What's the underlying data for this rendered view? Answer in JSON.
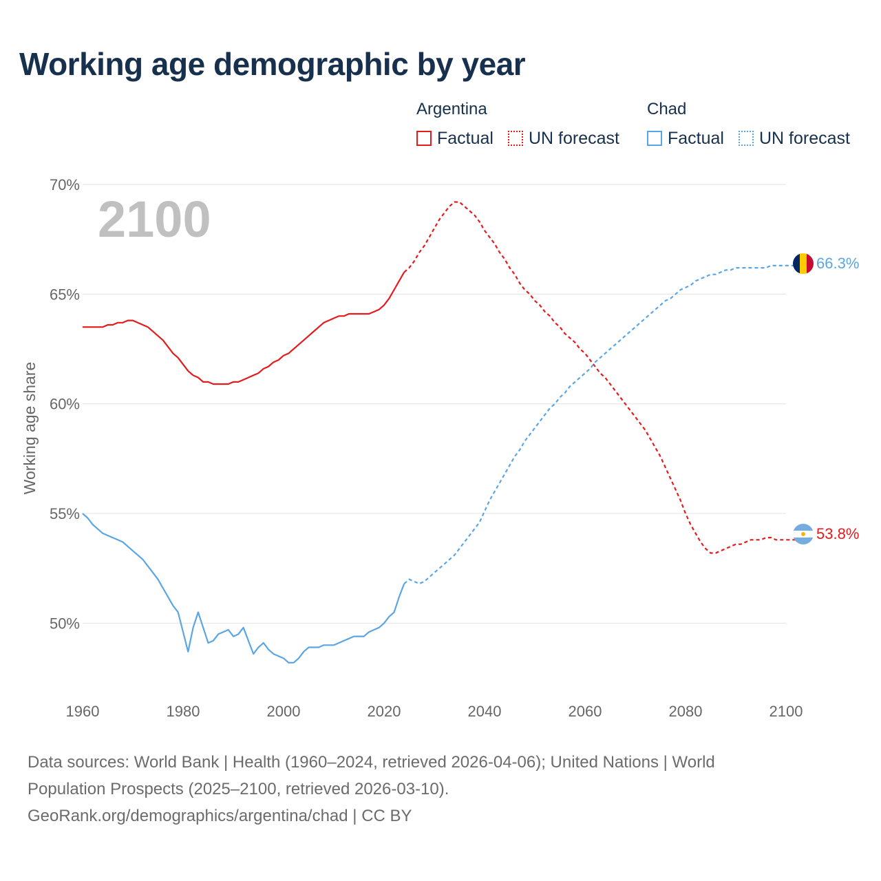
{
  "title": "Working age demographic by year",
  "legend": {
    "argentina_label": "Argentina",
    "chad_label": "Chad",
    "factual_label": "Factual",
    "forecast_label": "UN forecast"
  },
  "colors": {
    "argentina": "#e41a1c",
    "chad": "#5aa5e6",
    "grid": "#e6e6e6",
    "axis_text": "#666666",
    "year_watermark": "#c0c0c0"
  },
  "footer": {
    "line1": "Data sources: World Bank | Health (1960–2024, retrieved 2026-04-06); United Nations | World",
    "line2": "Population Prospects (2025–2100, retrieved 2026-03-10).",
    "line3": "GeoRank.org/demographics/argentina/chad | CC BY"
  },
  "chart_data": {
    "type": "line",
    "title": "Working age demographic by year",
    "xlabel": "",
    "ylabel": "Working age share",
    "xlim": [
      1960,
      2100
    ],
    "ylim": [
      46.5,
      70
    ],
    "x_ticks": [
      1960,
      1980,
      2000,
      2020,
      2040,
      2060,
      2080,
      2100
    ],
    "y_ticks": [
      50,
      55,
      60,
      65,
      70
    ],
    "y_tick_labels": [
      "50%",
      "55%",
      "60%",
      "65%",
      "70%"
    ],
    "grid": true,
    "year_watermark": "2100",
    "factual_until": 2024,
    "series": [
      {
        "name": "Argentina",
        "end_label": "53.8%",
        "flag": "argentina-flag",
        "points": [
          [
            1960,
            63.5
          ],
          [
            1964,
            63.5
          ],
          [
            1965,
            63.6
          ],
          [
            1966,
            63.6
          ],
          [
            1967,
            63.7
          ],
          [
            1968,
            63.7
          ],
          [
            1969,
            63.8
          ],
          [
            1970,
            63.8
          ],
          [
            1972,
            63.6
          ],
          [
            1973,
            63.5
          ],
          [
            1975,
            63.1
          ],
          [
            1976,
            62.9
          ],
          [
            1978,
            62.3
          ],
          [
            1979,
            62.1
          ],
          [
            1981,
            61.5
          ],
          [
            1982,
            61.3
          ],
          [
            1983,
            61.2
          ],
          [
            1984,
            61.0
          ],
          [
            1985,
            61.0
          ],
          [
            1986,
            60.9
          ],
          [
            1987,
            60.9
          ],
          [
            1989,
            60.9
          ],
          [
            1990,
            61.0
          ],
          [
            1991,
            61.0
          ],
          [
            1992,
            61.1
          ],
          [
            1994,
            61.3
          ],
          [
            1995,
            61.4
          ],
          [
            1996,
            61.6
          ],
          [
            1997,
            61.7
          ],
          [
            1998,
            61.9
          ],
          [
            1999,
            62.0
          ],
          [
            2000,
            62.2
          ],
          [
            2001,
            62.3
          ],
          [
            2002,
            62.5
          ],
          [
            2003,
            62.7
          ],
          [
            2004,
            62.9
          ],
          [
            2005,
            63.1
          ],
          [
            2006,
            63.3
          ],
          [
            2007,
            63.5
          ],
          [
            2008,
            63.7
          ],
          [
            2009,
            63.8
          ],
          [
            2010,
            63.9
          ],
          [
            2011,
            64.0
          ],
          [
            2012,
            64.0
          ],
          [
            2013,
            64.1
          ],
          [
            2014,
            64.1
          ],
          [
            2017,
            64.1
          ],
          [
            2018,
            64.2
          ],
          [
            2019,
            64.3
          ],
          [
            2020,
            64.5
          ],
          [
            2021,
            64.8
          ],
          [
            2022,
            65.2
          ],
          [
            2023,
            65.6
          ],
          [
            2024,
            66.0
          ],
          [
            2025,
            66.2
          ],
          [
            2026,
            66.5
          ],
          [
            2027,
            66.9
          ],
          [
            2028,
            67.2
          ],
          [
            2029,
            67.6
          ],
          [
            2030,
            68.0
          ],
          [
            2031,
            68.4
          ],
          [
            2032,
            68.7
          ],
          [
            2033,
            69.0
          ],
          [
            2034,
            69.2
          ],
          [
            2035,
            69.2
          ],
          [
            2036,
            69.0
          ],
          [
            2037,
            68.8
          ],
          [
            2038,
            68.6
          ],
          [
            2039,
            68.3
          ],
          [
            2040,
            67.9
          ],
          [
            2041,
            67.6
          ],
          [
            2042,
            67.3
          ],
          [
            2043,
            66.9
          ],
          [
            2044,
            66.6
          ],
          [
            2045,
            66.2
          ],
          [
            2046,
            65.9
          ],
          [
            2047,
            65.5
          ],
          [
            2048,
            65.2
          ],
          [
            2049,
            65.0
          ],
          [
            2050,
            64.7
          ],
          [
            2051,
            64.5
          ],
          [
            2052,
            64.2
          ],
          [
            2053,
            64.0
          ],
          [
            2054,
            63.7
          ],
          [
            2055,
            63.5
          ],
          [
            2056,
            63.2
          ],
          [
            2057,
            63.0
          ],
          [
            2058,
            62.8
          ],
          [
            2059,
            62.5
          ],
          [
            2060,
            62.3
          ],
          [
            2061,
            62.0
          ],
          [
            2062,
            61.7
          ],
          [
            2063,
            61.4
          ],
          [
            2064,
            61.2
          ],
          [
            2065,
            60.9
          ],
          [
            2066,
            60.6
          ],
          [
            2067,
            60.3
          ],
          [
            2068,
            60.0
          ],
          [
            2069,
            59.7
          ],
          [
            2070,
            59.4
          ],
          [
            2071,
            59.1
          ],
          [
            2072,
            58.8
          ],
          [
            2073,
            58.4
          ],
          [
            2074,
            58.0
          ],
          [
            2075,
            57.6
          ],
          [
            2076,
            57.1
          ],
          [
            2077,
            56.6
          ],
          [
            2078,
            56.1
          ],
          [
            2079,
            55.6
          ],
          [
            2080,
            55.0
          ],
          [
            2081,
            54.5
          ],
          [
            2082,
            54.1
          ],
          [
            2083,
            53.7
          ],
          [
            2084,
            53.4
          ],
          [
            2085,
            53.2
          ],
          [
            2086,
            53.2
          ],
          [
            2087,
            53.3
          ],
          [
            2088,
            53.4
          ],
          [
            2089,
            53.5
          ],
          [
            2090,
            53.6
          ],
          [
            2091,
            53.6
          ],
          [
            2092,
            53.7
          ],
          [
            2093,
            53.8
          ],
          [
            2094,
            53.8
          ],
          [
            2095,
            53.8
          ],
          [
            2096,
            53.9
          ],
          [
            2097,
            53.9
          ],
          [
            2098,
            53.8
          ],
          [
            2099,
            53.8
          ],
          [
            2100,
            53.8
          ]
        ]
      },
      {
        "name": "Chad",
        "end_label": "66.3%",
        "flag": "chad-flag",
        "points": [
          [
            1960,
            55.0
          ],
          [
            1961,
            54.8
          ],
          [
            1962,
            54.5
          ],
          [
            1963,
            54.3
          ],
          [
            1964,
            54.1
          ],
          [
            1965,
            54.0
          ],
          [
            1966,
            53.9
          ],
          [
            1967,
            53.8
          ],
          [
            1968,
            53.7
          ],
          [
            1969,
            53.5
          ],
          [
            1970,
            53.3
          ],
          [
            1971,
            53.1
          ],
          [
            1972,
            52.9
          ],
          [
            1973,
            52.6
          ],
          [
            1974,
            52.3
          ],
          [
            1975,
            52.0
          ],
          [
            1976,
            51.6
          ],
          [
            1977,
            51.2
          ],
          [
            1978,
            50.8
          ],
          [
            1979,
            50.5
          ],
          [
            1980,
            49.6
          ],
          [
            1981,
            48.7
          ],
          [
            1982,
            49.8
          ],
          [
            1983,
            50.5
          ],
          [
            1984,
            49.8
          ],
          [
            1985,
            49.1
          ],
          [
            1986,
            49.2
          ],
          [
            1987,
            49.5
          ],
          [
            1988,
            49.6
          ],
          [
            1989,
            49.7
          ],
          [
            1990,
            49.4
          ],
          [
            1991,
            49.5
          ],
          [
            1992,
            49.8
          ],
          [
            1993,
            49.2
          ],
          [
            1994,
            48.6
          ],
          [
            1995,
            48.9
          ],
          [
            1996,
            49.1
          ],
          [
            1997,
            48.8
          ],
          [
            1998,
            48.6
          ],
          [
            1999,
            48.5
          ],
          [
            2000,
            48.4
          ],
          [
            2001,
            48.2
          ],
          [
            2002,
            48.2
          ],
          [
            2003,
            48.4
          ],
          [
            2004,
            48.7
          ],
          [
            2005,
            48.9
          ],
          [
            2006,
            48.9
          ],
          [
            2007,
            48.9
          ],
          [
            2008,
            49.0
          ],
          [
            2009,
            49.0
          ],
          [
            2010,
            49.0
          ],
          [
            2011,
            49.1
          ],
          [
            2012,
            49.2
          ],
          [
            2013,
            49.3
          ],
          [
            2014,
            49.4
          ],
          [
            2015,
            49.4
          ],
          [
            2016,
            49.4
          ],
          [
            2017,
            49.6
          ],
          [
            2018,
            49.7
          ],
          [
            2019,
            49.8
          ],
          [
            2020,
            50.0
          ],
          [
            2021,
            50.3
          ],
          [
            2022,
            50.5
          ],
          [
            2023,
            51.2
          ],
          [
            2024,
            51.8
          ],
          [
            2025,
            52.0
          ],
          [
            2026,
            51.9
          ],
          [
            2027,
            51.8
          ],
          [
            2028,
            51.9
          ],
          [
            2029,
            52.1
          ],
          [
            2030,
            52.3
          ],
          [
            2031,
            52.5
          ],
          [
            2032,
            52.7
          ],
          [
            2033,
            52.9
          ],
          [
            2034,
            53.1
          ],
          [
            2035,
            53.4
          ],
          [
            2036,
            53.7
          ],
          [
            2037,
            54.0
          ],
          [
            2038,
            54.3
          ],
          [
            2039,
            54.6
          ],
          [
            2040,
            55.1
          ],
          [
            2041,
            55.6
          ],
          [
            2042,
            56.0
          ],
          [
            2043,
            56.4
          ],
          [
            2044,
            56.8
          ],
          [
            2045,
            57.2
          ],
          [
            2046,
            57.6
          ],
          [
            2047,
            57.9
          ],
          [
            2048,
            58.3
          ],
          [
            2049,
            58.6
          ],
          [
            2050,
            58.9
          ],
          [
            2051,
            59.2
          ],
          [
            2052,
            59.5
          ],
          [
            2053,
            59.8
          ],
          [
            2054,
            60.0
          ],
          [
            2055,
            60.3
          ],
          [
            2056,
            60.5
          ],
          [
            2057,
            60.8
          ],
          [
            2058,
            61.0
          ],
          [
            2059,
            61.2
          ],
          [
            2060,
            61.4
          ],
          [
            2061,
            61.6
          ],
          [
            2062,
            61.9
          ],
          [
            2063,
            62.1
          ],
          [
            2064,
            62.3
          ],
          [
            2065,
            62.5
          ],
          [
            2066,
            62.7
          ],
          [
            2067,
            62.9
          ],
          [
            2068,
            63.1
          ],
          [
            2069,
            63.3
          ],
          [
            2070,
            63.5
          ],
          [
            2071,
            63.7
          ],
          [
            2072,
            63.9
          ],
          [
            2073,
            64.1
          ],
          [
            2074,
            64.3
          ],
          [
            2075,
            64.5
          ],
          [
            2076,
            64.7
          ],
          [
            2077,
            64.8
          ],
          [
            2078,
            65.0
          ],
          [
            2079,
            65.2
          ],
          [
            2080,
            65.3
          ],
          [
            2081,
            65.4
          ],
          [
            2082,
            65.6
          ],
          [
            2083,
            65.7
          ],
          [
            2084,
            65.8
          ],
          [
            2085,
            65.9
          ],
          [
            2086,
            65.9
          ],
          [
            2087,
            66.0
          ],
          [
            2088,
            66.1
          ],
          [
            2089,
            66.1
          ],
          [
            2090,
            66.2
          ],
          [
            2091,
            66.2
          ],
          [
            2096,
            66.2
          ],
          [
            2097,
            66.3
          ],
          [
            2100,
            66.3
          ]
        ]
      }
    ]
  }
}
